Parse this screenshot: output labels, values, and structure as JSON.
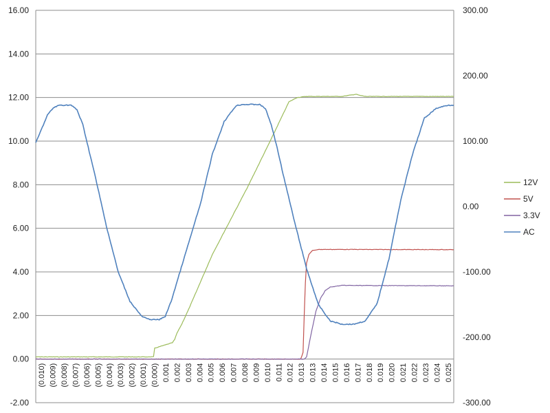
{
  "chart_data": {
    "type": "line",
    "title": "",
    "xlabel": "",
    "ylabel": "",
    "y_left_ticks": [
      "16.00",
      "14.00",
      "12.00",
      "10.00",
      "8.00",
      "6.00",
      "4.00",
      "2.00",
      "0.00",
      "-2.00"
    ],
    "y_right_ticks": [
      "300.00",
      "200.00",
      "100.00",
      "0.00",
      "-100.00",
      "-200.00",
      "-300.00"
    ],
    "ylim_left": [
      -2,
      16
    ],
    "ylim_right": [
      -300,
      300
    ],
    "x_tick_labels": [
      "(0.010)",
      "(0.009)",
      "(0.008)",
      "(0.007)",
      "(0.006)",
      "(0.005)",
      "(0.004)",
      "(0.003)",
      "(0.002)",
      "(0.001)",
      "(0.000)",
      "0.001",
      "0.002",
      "0.003",
      "0.004",
      "0.005",
      "0.006",
      "0.007",
      "0.008",
      "0.009",
      "0.010",
      "0.011",
      "0.012",
      "0.013",
      "0.013",
      "0.014",
      "0.015",
      "0.016",
      "0.017",
      "0.018",
      "0.019",
      "0.020",
      "0.021",
      "0.022",
      "0.023",
      "0.024",
      "0.025"
    ],
    "xlim": [
      -0.01,
      0.0255
    ],
    "grid": "horizontal",
    "legend_position": "right",
    "series": [
      {
        "name": "12V",
        "axis": "left",
        "color": "#9bbb59",
        "x": [
          -0.01,
          -0.0002,
          0.0,
          0.0001,
          0.001,
          0.0016,
          0.0018,
          0.002,
          0.0024,
          0.003,
          0.005,
          0.008,
          0.01,
          0.0115,
          0.0122,
          0.013,
          0.016,
          0.0172,
          0.0175,
          0.018,
          0.0255
        ],
        "y": [
          0.1,
          0.1,
          0.1,
          0.5,
          0.65,
          0.75,
          0.9,
          1.2,
          1.6,
          2.3,
          4.8,
          7.9,
          10.1,
          11.8,
          12.0,
          12.05,
          12.05,
          12.15,
          12.1,
          12.05,
          12.05
        ]
      },
      {
        "name": "5V",
        "axis": "left",
        "color": "#c0504d",
        "x": [
          -0.01,
          0.0,
          0.006,
          0.0125,
          0.0127,
          0.0128,
          0.0129,
          0.013,
          0.0132,
          0.0135,
          0.014,
          0.016,
          0.0255
        ],
        "y": [
          0.0,
          0.0,
          0.0,
          0.0,
          0.3,
          2.0,
          3.5,
          4.4,
          4.8,
          4.98,
          5.03,
          5.03,
          5.02
        ]
      },
      {
        "name": "3.3V",
        "axis": "left",
        "color": "#8064a2",
        "x": [
          -0.01,
          0.0,
          0.006,
          0.0128,
          0.013,
          0.0134,
          0.0138,
          0.0142,
          0.0146,
          0.015,
          0.016,
          0.0255
        ],
        "y": [
          0.0,
          0.0,
          0.0,
          0.0,
          0.1,
          1.2,
          2.2,
          2.8,
          3.15,
          3.3,
          3.38,
          3.36
        ]
      },
      {
        "name": "AC",
        "axis": "right",
        "color": "#4f81bd",
        "x": [
          -0.01,
          -0.0097,
          -0.009,
          -0.0085,
          -0.008,
          -0.007,
          -0.0065,
          -0.006,
          -0.005,
          -0.004,
          -0.003,
          -0.002,
          -0.001,
          -0.0005,
          0.0,
          0.0005,
          0.001,
          0.0015,
          0.002,
          0.003,
          0.004,
          0.005,
          0.006,
          0.007,
          0.0075,
          0.008,
          0.009,
          0.0095,
          0.01,
          0.0105,
          0.011,
          0.012,
          0.013,
          0.014,
          0.015,
          0.016,
          0.0165,
          0.017,
          0.018,
          0.019,
          0.02,
          0.021,
          0.022,
          0.023,
          0.024,
          0.025,
          0.0255
        ],
        "y": [
          97,
          110,
          140,
          151,
          155,
          155,
          148,
          125,
          50,
          -30,
          -100,
          -145,
          -168,
          -172,
          -173,
          -173,
          -168,
          -145,
          -115,
          -55,
          5,
          80,
          130,
          154,
          156,
          156,
          156,
          150,
          125,
          90,
          50,
          -25,
          -95,
          -150,
          -175,
          -180,
          -180,
          -180,
          -175,
          -148,
          -80,
          10,
          80,
          135,
          150,
          155,
          155
        ]
      }
    ]
  }
}
